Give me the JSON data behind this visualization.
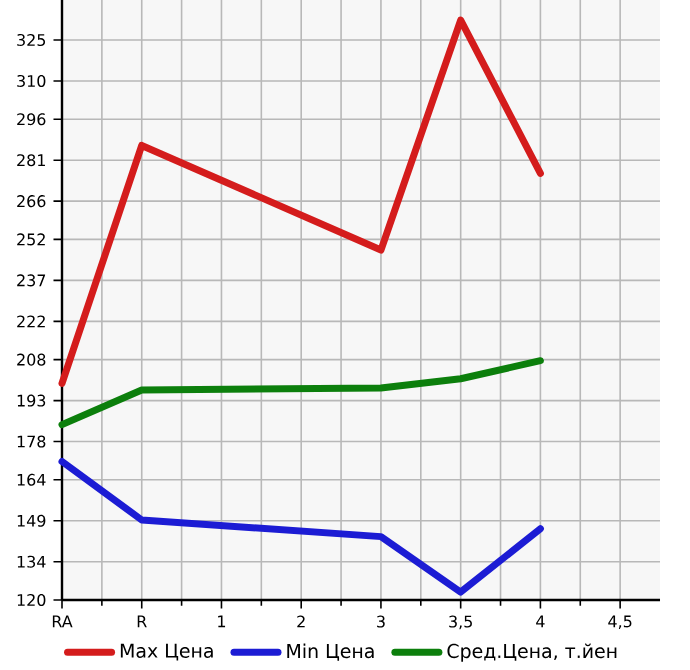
{
  "chart_data": {
    "type": "line",
    "categories": [
      "RA",
      "R",
      "1",
      "2",
      "3",
      "3,5",
      "4",
      "4,5"
    ],
    "series": [
      {
        "name": "Max Цена",
        "color": "#d41c1c",
        "values": [
          199.3,
          286.4,
          null,
          null,
          248.1,
          332.3,
          276.2,
          null
        ]
      },
      {
        "name": "Min Цена",
        "color": "#1c1cd4",
        "values": [
          170.7,
          149.3,
          null,
          null,
          143.2,
          122.9,
          146.1,
          null
        ]
      },
      {
        "name": "Сред.Цена, т.йен",
        "color": "#0c7f0c",
        "values": [
          184.2,
          196.9,
          null,
          null,
          197.6,
          201.0,
          207.6,
          null
        ]
      }
    ],
    "ylim": [
      120,
      339.64
    ],
    "yticks": [
      120,
      134,
      149,
      164,
      178,
      193,
      208,
      222,
      237,
      252,
      266,
      281,
      296,
      310,
      325
    ],
    "grid": true,
    "legend": "bottom",
    "marker": "none",
    "line_style": "solid"
  }
}
